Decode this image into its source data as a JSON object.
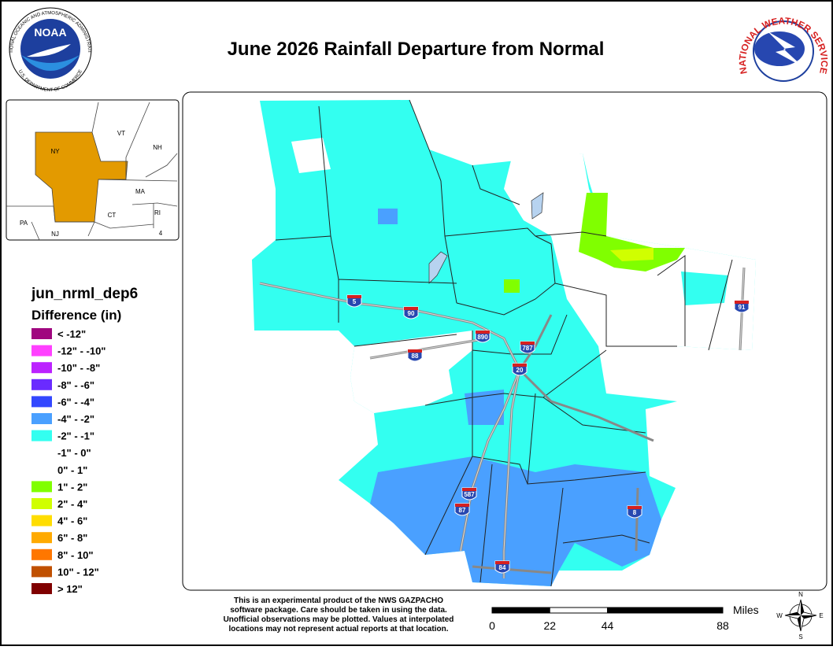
{
  "header": {
    "title": "June 2026 Rainfall Departure from Normal"
  },
  "logos": {
    "noaa": "NOAA",
    "noaa_ring_top": "NATIONAL OCEANIC AND ATMOSPHERIC ADMINISTRATION",
    "noaa_ring_bottom": "U.S. DEPARTMENT OF COMMERCE",
    "nws_ring": "NATIONAL WEATHER SERVICE"
  },
  "inset": {
    "labels": [
      "NY",
      "VT",
      "NH",
      "MA",
      "CT",
      "RI",
      "PA",
      "NJ",
      "4"
    ]
  },
  "legend": {
    "title": "jun_nrml_dep6",
    "subtitle": "Difference (in)",
    "items": [
      {
        "label": "< -12\"",
        "color": "#a0077f"
      },
      {
        "label": "-12\" - -10\"",
        "color": "#ff40ff"
      },
      {
        "label": "-10\" - -8\"",
        "color": "#bb22ff"
      },
      {
        "label": "-8\" - -6\"",
        "color": "#6a2bff"
      },
      {
        "label": "-6\" - -4\"",
        "color": "#3347ff"
      },
      {
        "label": "-4\" - -2\"",
        "color": "#4aa0ff"
      },
      {
        "label": "-2\" - -1\"",
        "color": "#33fff0"
      },
      {
        "label": "-1\" - 0\"",
        "color": "#ffffff"
      },
      {
        "label": "0\" - 1\"",
        "color": "#ffffff"
      },
      {
        "label": "1\" - 2\"",
        "color": "#80ff00"
      },
      {
        "label": "2\" - 4\"",
        "color": "#d0ff00"
      },
      {
        "label": "4\" - 6\"",
        "color": "#ffdd00"
      },
      {
        "label": "6\" - 8\"",
        "color": "#ffaa00"
      },
      {
        "label": "8\" - 10\"",
        "color": "#ff7700"
      },
      {
        "label": "10\" - 12\"",
        "color": "#c05000"
      },
      {
        "label": "> 12\"",
        "color": "#800000"
      }
    ]
  },
  "highways": [
    "5",
    "90",
    "890",
    "88",
    "787",
    "20",
    "587",
    "87",
    "84",
    "91",
    "8"
  ],
  "disclaimer": [
    "This is an experimental product of the NWS GAZPACHO",
    "software package. Care should be taken in using the data.",
    "Unofficial observations may be plotted. Values at interpolated",
    "locations may not represent actual reports at that location."
  ],
  "scale": {
    "unit": "Miles",
    "ticks": [
      0,
      22,
      44,
      88
    ]
  },
  "compass": {
    "n": "N",
    "e": "E",
    "s": "S",
    "w": "W"
  }
}
